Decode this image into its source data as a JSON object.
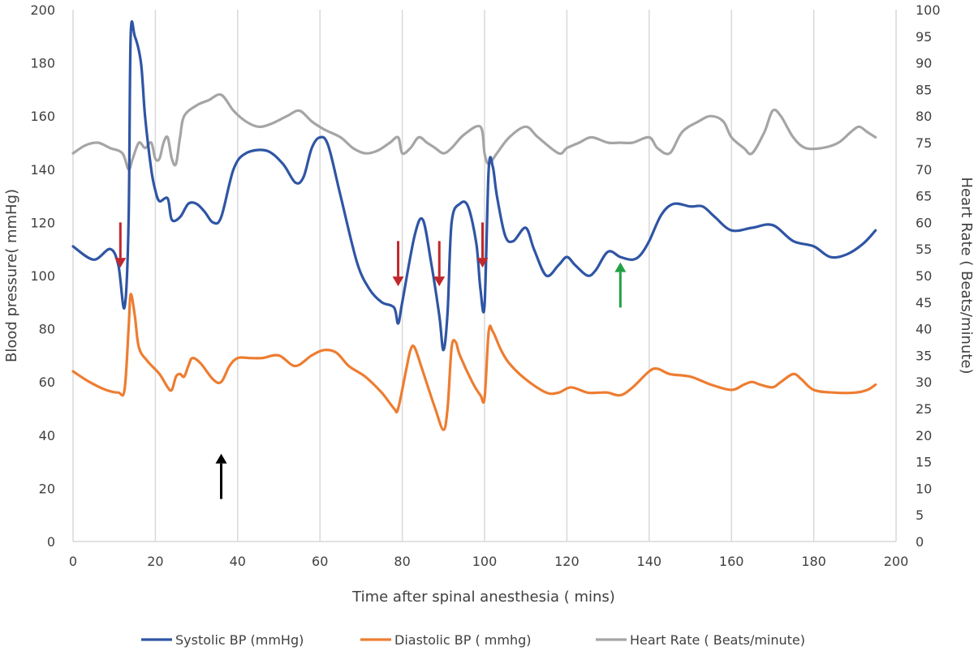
{
  "chart_data": {
    "type": "line",
    "xlabel": "Time after spinal anesthesia ( mins)",
    "ylabel": "Blood pressure( mmHg)",
    "y2label": "Heart Rate ( Beats/minute)",
    "xlim": [
      0,
      200
    ],
    "ylim": [
      0,
      200
    ],
    "y2lim": [
      0,
      100
    ],
    "x_ticks": [
      0,
      20,
      40,
      60,
      80,
      100,
      120,
      140,
      160,
      180,
      200
    ],
    "y_ticks": [
      0,
      20,
      40,
      60,
      80,
      100,
      120,
      140,
      160,
      180,
      200
    ],
    "y2_ticks": [
      0,
      5,
      10,
      15,
      20,
      25,
      30,
      35,
      40,
      45,
      50,
      55,
      60,
      65,
      70,
      75,
      80,
      85,
      90,
      95,
      100
    ],
    "grid": "vertical",
    "legend_position": "bottom",
    "series": [
      {
        "name": "Systolic BP (mmHg)",
        "color": "#2f55a4",
        "axis": "left",
        "points": [
          [
            0,
            111
          ],
          [
            5,
            106
          ],
          [
            9,
            110
          ],
          [
            11,
            104
          ],
          [
            12.5,
            88
          ],
          [
            13.5,
            120
          ],
          [
            14,
            190
          ],
          [
            15,
            190
          ],
          [
            16.5,
            180
          ],
          [
            17.5,
            160
          ],
          [
            19,
            140
          ],
          [
            20,
            132
          ],
          [
            21,
            128
          ],
          [
            23,
            129
          ],
          [
            24,
            121
          ],
          [
            26,
            122
          ],
          [
            28,
            127
          ],
          [
            30,
            127
          ],
          [
            32,
            124
          ],
          [
            34,
            120
          ],
          [
            36,
            122
          ],
          [
            39,
            140
          ],
          [
            42,
            146
          ],
          [
            47,
            147
          ],
          [
            51,
            142
          ],
          [
            54,
            135
          ],
          [
            56,
            137
          ],
          [
            58,
            148
          ],
          [
            60,
            152
          ],
          [
            62,
            149
          ],
          [
            65,
            130
          ],
          [
            69,
            105
          ],
          [
            72,
            95
          ],
          [
            75,
            90
          ],
          [
            78,
            88
          ],
          [
            79,
            82
          ],
          [
            80,
            90
          ],
          [
            83,
            115
          ],
          [
            85,
            121
          ],
          [
            87,
            105
          ],
          [
            89,
            85
          ],
          [
            90,
            72
          ],
          [
            91,
            86
          ],
          [
            92,
            120
          ],
          [
            94,
            127
          ],
          [
            96,
            126
          ],
          [
            98,
            112
          ],
          [
            99,
            95
          ],
          [
            100,
            89
          ],
          [
            101,
            140
          ],
          [
            102,
            141
          ],
          [
            103,
            130
          ],
          [
            105,
            115
          ],
          [
            107,
            113
          ],
          [
            110,
            118
          ],
          [
            112,
            110
          ],
          [
            115,
            100
          ],
          [
            118,
            104
          ],
          [
            120,
            107
          ],
          [
            122,
            104
          ],
          [
            125,
            100
          ],
          [
            127,
            102
          ],
          [
            130,
            109
          ],
          [
            133,
            107
          ],
          [
            136,
            106
          ],
          [
            138,
            108
          ],
          [
            140,
            113
          ],
          [
            143,
            123
          ],
          [
            146,
            127
          ],
          [
            150,
            126
          ],
          [
            153,
            126
          ],
          [
            156,
            122
          ],
          [
            160,
            117
          ],
          [
            165,
            118
          ],
          [
            170,
            119
          ],
          [
            175,
            113
          ],
          [
            180,
            111
          ],
          [
            184,
            107
          ],
          [
            188,
            108
          ],
          [
            192,
            112
          ],
          [
            195,
            117
          ]
        ]
      },
      {
        "name": "Diastolic BP ( mmhg)",
        "color": "#ed7d31",
        "axis": "left",
        "points": [
          [
            0,
            64
          ],
          [
            4,
            60
          ],
          [
            8,
            57
          ],
          [
            11,
            56
          ],
          [
            12.5,
            57
          ],
          [
            13.5,
            80
          ],
          [
            14,
            93
          ],
          [
            15,
            85
          ],
          [
            16,
            73
          ],
          [
            18,
            68
          ],
          [
            21,
            63
          ],
          [
            23,
            58
          ],
          [
            24,
            57
          ],
          [
            25,
            62
          ],
          [
            26,
            63
          ],
          [
            27,
            62
          ],
          [
            28,
            66
          ],
          [
            29,
            69
          ],
          [
            31,
            67
          ],
          [
            34,
            61
          ],
          [
            36,
            60
          ],
          [
            38,
            66
          ],
          [
            40,
            69
          ],
          [
            43,
            69
          ],
          [
            46,
            69
          ],
          [
            50,
            70
          ],
          [
            54,
            66
          ],
          [
            58,
            70
          ],
          [
            61,
            72
          ],
          [
            64,
            71
          ],
          [
            67,
            66
          ],
          [
            71,
            62
          ],
          [
            75,
            56
          ],
          [
            78,
            50
          ],
          [
            79,
            50
          ],
          [
            81,
            65
          ],
          [
            82,
            72
          ],
          [
            83,
            73
          ],
          [
            85,
            64
          ],
          [
            88,
            50
          ],
          [
            90,
            42
          ],
          [
            91,
            50
          ],
          [
            92,
            73
          ],
          [
            93,
            75
          ],
          [
            94,
            70
          ],
          [
            97,
            60
          ],
          [
            99,
            55
          ],
          [
            100,
            54
          ],
          [
            101,
            79
          ],
          [
            102,
            79
          ],
          [
            104,
            72
          ],
          [
            106,
            67
          ],
          [
            110,
            61
          ],
          [
            115,
            56
          ],
          [
            118,
            56
          ],
          [
            121,
            58
          ],
          [
            125,
            56
          ],
          [
            128,
            56
          ],
          [
            130,
            56
          ],
          [
            133,
            55
          ],
          [
            136,
            58
          ],
          [
            140,
            64
          ],
          [
            142,
            65
          ],
          [
            145,
            63
          ],
          [
            150,
            62
          ],
          [
            155,
            59
          ],
          [
            160,
            57
          ],
          [
            163,
            59
          ],
          [
            165,
            60
          ],
          [
            167,
            59
          ],
          [
            170,
            58
          ],
          [
            172,
            60
          ],
          [
            175,
            63
          ],
          [
            177,
            61
          ],
          [
            180,
            57
          ],
          [
            185,
            56
          ],
          [
            190,
            56
          ],
          [
            193,
            57
          ],
          [
            195,
            59
          ]
        ]
      },
      {
        "name": "Heart Rate ( Beats/minute)",
        "color": "#a5a5a5",
        "axis": "right",
        "points": [
          [
            0,
            73
          ],
          [
            3,
            74.5
          ],
          [
            6,
            75
          ],
          [
            9,
            74
          ],
          [
            12,
            73
          ],
          [
            13.5,
            70
          ],
          [
            14.5,
            72
          ],
          [
            16,
            75
          ],
          [
            17.5,
            74
          ],
          [
            19,
            75
          ],
          [
            20,
            72
          ],
          [
            21,
            72
          ],
          [
            22,
            75
          ],
          [
            23,
            76
          ],
          [
            24,
            72
          ],
          [
            25,
            71
          ],
          [
            26,
            76
          ],
          [
            27,
            80
          ],
          [
            30,
            82
          ],
          [
            33,
            83
          ],
          [
            36,
            84
          ],
          [
            39,
            81
          ],
          [
            42,
            79
          ],
          [
            45,
            78
          ],
          [
            48,
            78.5
          ],
          [
            52,
            80
          ],
          [
            55,
            81
          ],
          [
            58,
            79
          ],
          [
            61,
            77.5
          ],
          [
            65,
            76
          ],
          [
            68,
            74
          ],
          [
            71,
            73
          ],
          [
            74,
            73.5
          ],
          [
            77,
            75
          ],
          [
            79,
            76
          ],
          [
            80,
            73
          ],
          [
            82,
            74
          ],
          [
            84,
            76
          ],
          [
            86,
            75
          ],
          [
            88,
            74
          ],
          [
            90,
            73
          ],
          [
            92,
            74
          ],
          [
            95,
            76.5
          ],
          [
            99,
            78
          ],
          [
            100,
            73
          ],
          [
            101,
            71
          ],
          [
            103,
            73
          ],
          [
            106,
            76
          ],
          [
            110,
            78
          ],
          [
            113,
            76
          ],
          [
            118,
            73
          ],
          [
            120,
            74
          ],
          [
            123,
            75
          ],
          [
            126,
            76
          ],
          [
            130,
            75
          ],
          [
            133,
            75
          ],
          [
            136,
            75
          ],
          [
            140,
            76
          ],
          [
            142,
            74
          ],
          [
            145,
            73
          ],
          [
            148,
            77
          ],
          [
            152,
            79
          ],
          [
            155,
            80
          ],
          [
            158,
            79
          ],
          [
            160,
            76
          ],
          [
            163,
            74
          ],
          [
            165,
            73
          ],
          [
            168,
            77
          ],
          [
            170,
            81
          ],
          [
            172,
            80
          ],
          [
            175,
            76
          ],
          [
            178,
            74
          ],
          [
            182,
            74
          ],
          [
            186,
            75
          ],
          [
            189,
            77
          ],
          [
            191,
            78
          ],
          [
            193,
            77
          ],
          [
            195,
            76
          ]
        ]
      }
    ],
    "annotations": [
      {
        "type": "arrow",
        "direction": "down",
        "color": "#c0282d",
        "x": 11.5,
        "y_start": 120,
        "y_end": 103
      },
      {
        "type": "arrow",
        "direction": "down",
        "color": "#c0282d",
        "x": 79,
        "y_start": 113,
        "y_end": 96
      },
      {
        "type": "arrow",
        "direction": "down",
        "color": "#c0282d",
        "x": 89,
        "y_start": 113,
        "y_end": 96
      },
      {
        "type": "arrow",
        "direction": "down",
        "color": "#c0282d",
        "x": 99.5,
        "y_start": 120,
        "y_end": 103
      },
      {
        "type": "arrow",
        "direction": "up",
        "color": "#000000",
        "x": 36,
        "y_start": 16,
        "y_end": 33
      },
      {
        "type": "arrow",
        "direction": "up",
        "color": "#22a045",
        "x": 133,
        "y_start": 88,
        "y_end": 105
      }
    ]
  }
}
